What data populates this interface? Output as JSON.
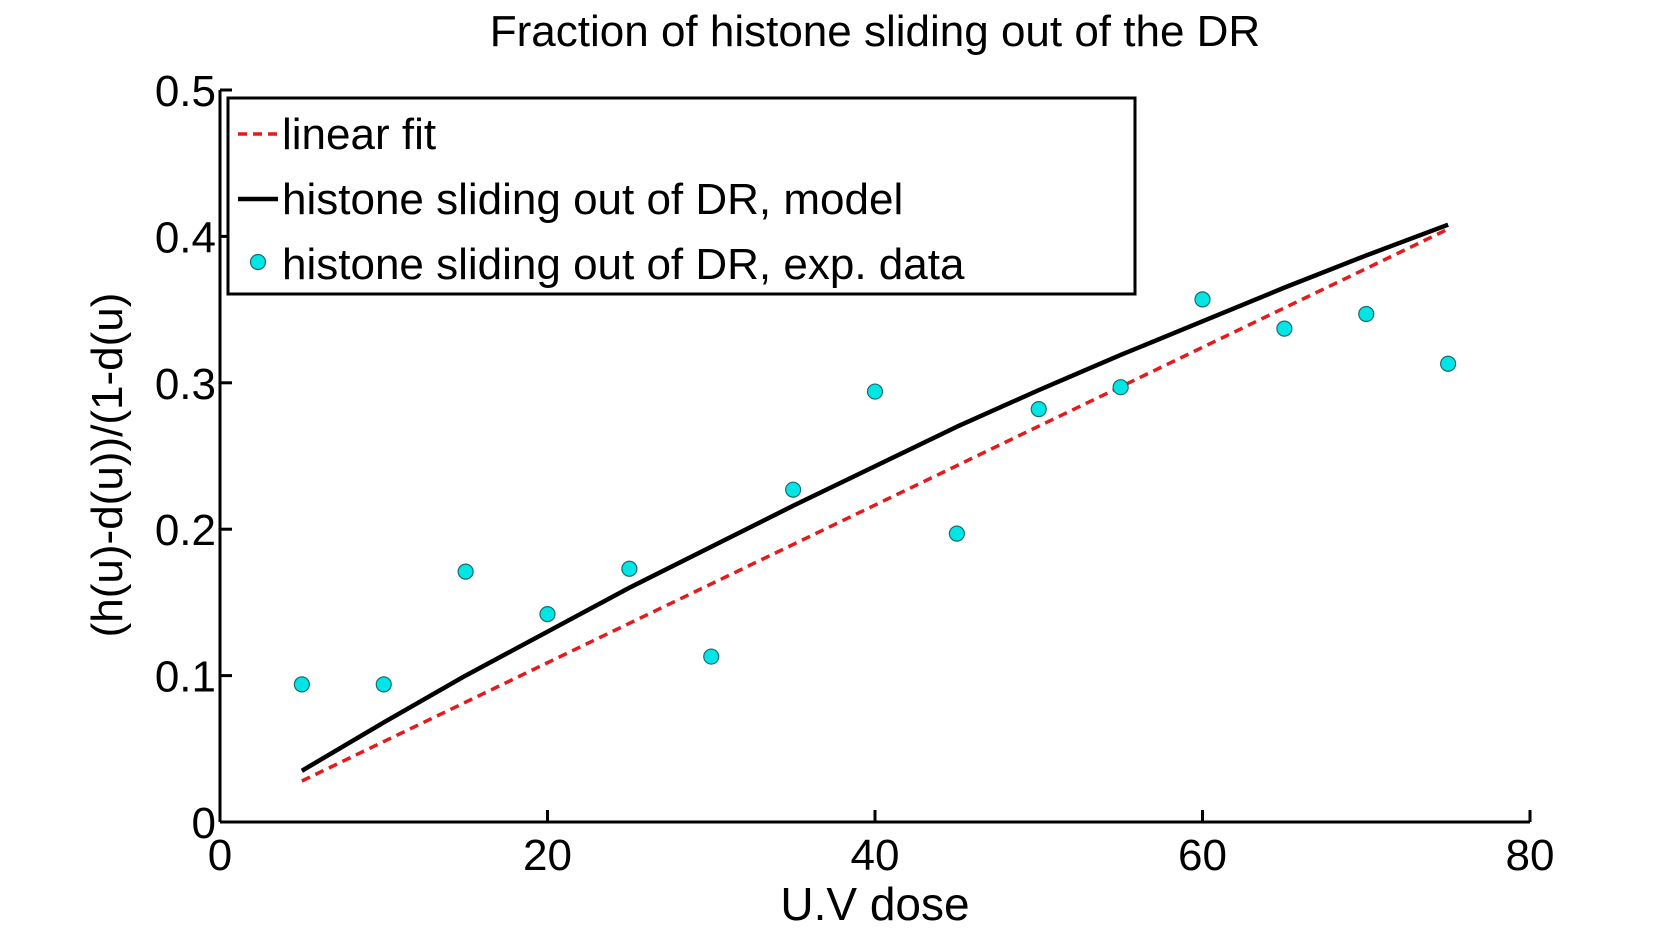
{
  "chart_data": {
    "type": "line",
    "title": "Fraction of histone sliding out of the DR",
    "xlabel": "U.V dose",
    "ylabel": "(h(u)-d(u))/(1-d(u)",
    "xlim": [
      0,
      80
    ],
    "ylim": [
      0,
      0.5
    ],
    "xticks": [
      0,
      20,
      40,
      60,
      80
    ],
    "yticks": [
      0,
      0.1,
      0.2,
      0.3,
      0.4,
      0.5
    ],
    "xtick_labels": [
      "0",
      "20",
      "40",
      "60",
      "80"
    ],
    "ytick_labels": [
      "0",
      "0.1",
      "0.2",
      "0.3",
      "0.4",
      "0.5"
    ],
    "grid": false,
    "legend_position": "top-left",
    "series": [
      {
        "name": "linear fit",
        "kind": "line",
        "style": "dashed",
        "color": "#e41a1c",
        "x": [
          5,
          75
        ],
        "y": [
          0.028,
          0.405
        ]
      },
      {
        "name": "histone sliding out of DR, model",
        "kind": "line",
        "style": "solid",
        "color": "#000000",
        "x": [
          5,
          10,
          15,
          20,
          25,
          30,
          35,
          40,
          45,
          50,
          55,
          60,
          65,
          70,
          75
        ],
        "y": [
          0.035,
          0.068,
          0.1,
          0.13,
          0.16,
          0.188,
          0.216,
          0.243,
          0.27,
          0.295,
          0.319,
          0.342,
          0.365,
          0.387,
          0.408
        ]
      },
      {
        "name": "histone sliding out of DR, exp. data",
        "kind": "scatter",
        "color": "#00e5e5",
        "x": [
          5,
          10,
          15,
          20,
          25,
          30,
          35,
          40,
          45,
          50,
          55,
          60,
          65,
          70,
          75
        ],
        "y": [
          0.094,
          0.094,
          0.171,
          0.142,
          0.173,
          0.113,
          0.227,
          0.294,
          0.197,
          0.282,
          0.297,
          0.357,
          0.337,
          0.347,
          0.313
        ]
      }
    ]
  }
}
